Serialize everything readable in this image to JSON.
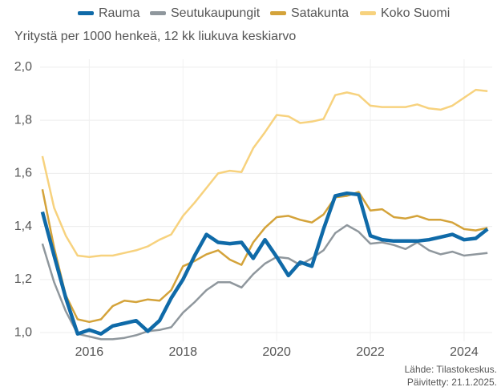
{
  "chart_data": {
    "type": "line",
    "subtitle": "Yritystä per 1000 henkeä, 12 kk liukuva keskiarvo",
    "x": [
      2015,
      2015.25,
      2015.5,
      2015.75,
      2016,
      2016.25,
      2016.5,
      2016.75,
      2017,
      2017.25,
      2017.5,
      2017.75,
      2018,
      2018.25,
      2018.5,
      2018.75,
      2019,
      2019.25,
      2019.5,
      2019.75,
      2020,
      2020.25,
      2020.5,
      2020.75,
      2021,
      2021.25,
      2021.5,
      2021.75,
      2022,
      2022.25,
      2022.5,
      2022.75,
      2023,
      2023.25,
      2023.5,
      2023.75,
      2024,
      2024.25,
      2024.5
    ],
    "series": [
      {
        "name": "Rauma",
        "color": "#0f6aa8",
        "values": [
          1.455,
          1.29,
          1.13,
          0.995,
          1.01,
          0.995,
          1.025,
          1.035,
          1.045,
          1.005,
          1.045,
          1.13,
          1.2,
          1.29,
          1.37,
          1.34,
          1.335,
          1.34,
          1.28,
          1.35,
          1.285,
          1.215,
          1.265,
          1.25,
          1.39,
          1.515,
          1.525,
          1.52,
          1.365,
          1.35,
          1.345,
          1.345,
          1.345,
          1.35,
          1.36,
          1.37,
          1.35,
          1.355,
          1.39
        ]
      },
      {
        "name": "Seutukaupungit",
        "color": "#8f979d",
        "values": [
          1.335,
          1.19,
          1.08,
          0.995,
          0.985,
          0.975,
          0.975,
          0.98,
          0.99,
          1.005,
          1.01,
          1.02,
          1.075,
          1.115,
          1.16,
          1.19,
          1.19,
          1.17,
          1.22,
          1.26,
          1.285,
          1.28,
          1.255,
          1.28,
          1.31,
          1.375,
          1.405,
          1.38,
          1.335,
          1.34,
          1.33,
          1.315,
          1.34,
          1.31,
          1.295,
          1.305,
          1.29,
          1.295,
          1.3
        ]
      },
      {
        "name": "Satakunta",
        "color": "#d4a33a",
        "values": [
          1.54,
          1.32,
          1.14,
          1.05,
          1.04,
          1.05,
          1.1,
          1.12,
          1.115,
          1.125,
          1.12,
          1.16,
          1.25,
          1.27,
          1.295,
          1.31,
          1.275,
          1.255,
          1.34,
          1.395,
          1.435,
          1.44,
          1.425,
          1.415,
          1.445,
          1.51,
          1.515,
          1.53,
          1.46,
          1.465,
          1.435,
          1.43,
          1.44,
          1.425,
          1.425,
          1.415,
          1.39,
          1.385,
          1.395
        ]
      },
      {
        "name": "Koko Suomi",
        "color": "#f7d27e",
        "values": [
          1.665,
          1.47,
          1.365,
          1.29,
          1.285,
          1.29,
          1.29,
          1.3,
          1.31,
          1.325,
          1.35,
          1.37,
          1.44,
          1.49,
          1.545,
          1.6,
          1.61,
          1.605,
          1.695,
          1.755,
          1.82,
          1.815,
          1.79,
          1.795,
          1.805,
          1.895,
          1.905,
          1.895,
          1.855,
          1.85,
          1.85,
          1.85,
          1.86,
          1.845,
          1.84,
          1.855,
          1.885,
          1.915,
          1.91
        ]
      }
    ],
    "xlim": [
      2014.95,
      2024.6
    ],
    "xticks": [
      2016,
      2018,
      2020,
      2022,
      2024
    ],
    "ylim": [
      0.967,
      2.03
    ],
    "yticks": [
      {
        "value": 1.0,
        "label": "1,0"
      },
      {
        "value": 1.2,
        "label": "1,2"
      },
      {
        "value": 1.4,
        "label": "1,4"
      },
      {
        "value": 1.6,
        "label": "1,6"
      },
      {
        "value": 1.8,
        "label": "1,8"
      },
      {
        "value": 2.0,
        "label": "2,0"
      }
    ],
    "grid": true,
    "legend": "top",
    "source": [
      "Lähde: Tilastokeskus.",
      "Päivitetty: 21.1.2025."
    ]
  }
}
